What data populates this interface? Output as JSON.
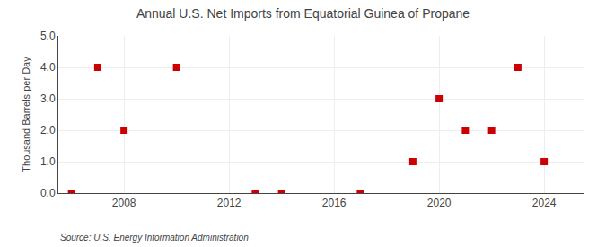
{
  "chart_data": {
    "type": "scatter",
    "title": "Annual U.S. Net Imports from Equatorial Guinea of Propane",
    "y_label": "Thousand Barrels per Day",
    "annotations": [
      "Source: U.S. Energy Information Administration"
    ],
    "x": [
      2006,
      2007,
      2008,
      2010,
      2013,
      2014,
      2017,
      2019,
      2020,
      2021,
      2022,
      2023,
      2024
    ],
    "values": [
      0,
      4,
      2,
      4,
      0,
      0,
      0,
      1,
      3,
      2,
      2,
      4,
      1
    ],
    "color": "#cc0000",
    "marker": "square",
    "xlim": [
      2005.5,
      2025.5
    ],
    "xticks": [
      2008,
      2012,
      2016,
      2020,
      2024
    ],
    "ylim": [
      0.0,
      5.0
    ],
    "yticks": [
      {
        "value": 0.0,
        "label": "0.0"
      },
      {
        "value": 1.0,
        "label": "1.0"
      },
      {
        "value": 2.0,
        "label": "2.0"
      },
      {
        "value": 3.0,
        "label": "3.0"
      },
      {
        "value": 4.0,
        "label": "4.0"
      },
      {
        "value": 5.0,
        "label": "5.0"
      }
    ],
    "grid": true
  }
}
